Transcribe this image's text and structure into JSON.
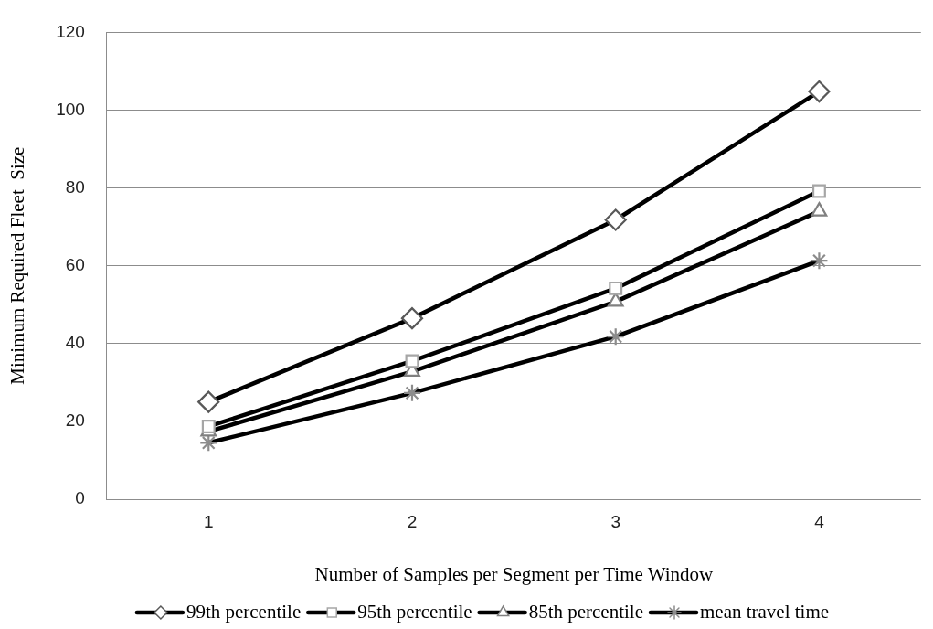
{
  "chart_data": {
    "type": "line",
    "xlabel": "Number of Samples per Segment per Time Window",
    "ylabel": "Minimum Required Fleet  Size",
    "categories": [
      "1",
      "2",
      "3",
      "4"
    ],
    "series": [
      {
        "name": "99th percentile",
        "color": "#000000",
        "marker": "diamond",
        "values": [
          25.0,
          46.5,
          71.8,
          104.8
        ]
      },
      {
        "name": "95th percentile",
        "color": "#000000",
        "marker": "square",
        "values": [
          18.7,
          35.5,
          54.2,
          79.2
        ]
      },
      {
        "name": "85th percentile",
        "color": "#000000",
        "marker": "triangle",
        "values": [
          17.4,
          32.8,
          50.8,
          74
        ]
      },
      {
        "name": "mean travel time",
        "color": "#000000",
        "marker": "cross",
        "values": [
          14.5,
          27.3,
          41.8,
          61.3
        ]
      }
    ],
    "ylim": [
      0,
      120
    ],
    "yticks": [
      0,
      20,
      40,
      60,
      80,
      100,
      120
    ],
    "grid": "y",
    "legend": "bottom",
    "line_style": "solid"
  }
}
